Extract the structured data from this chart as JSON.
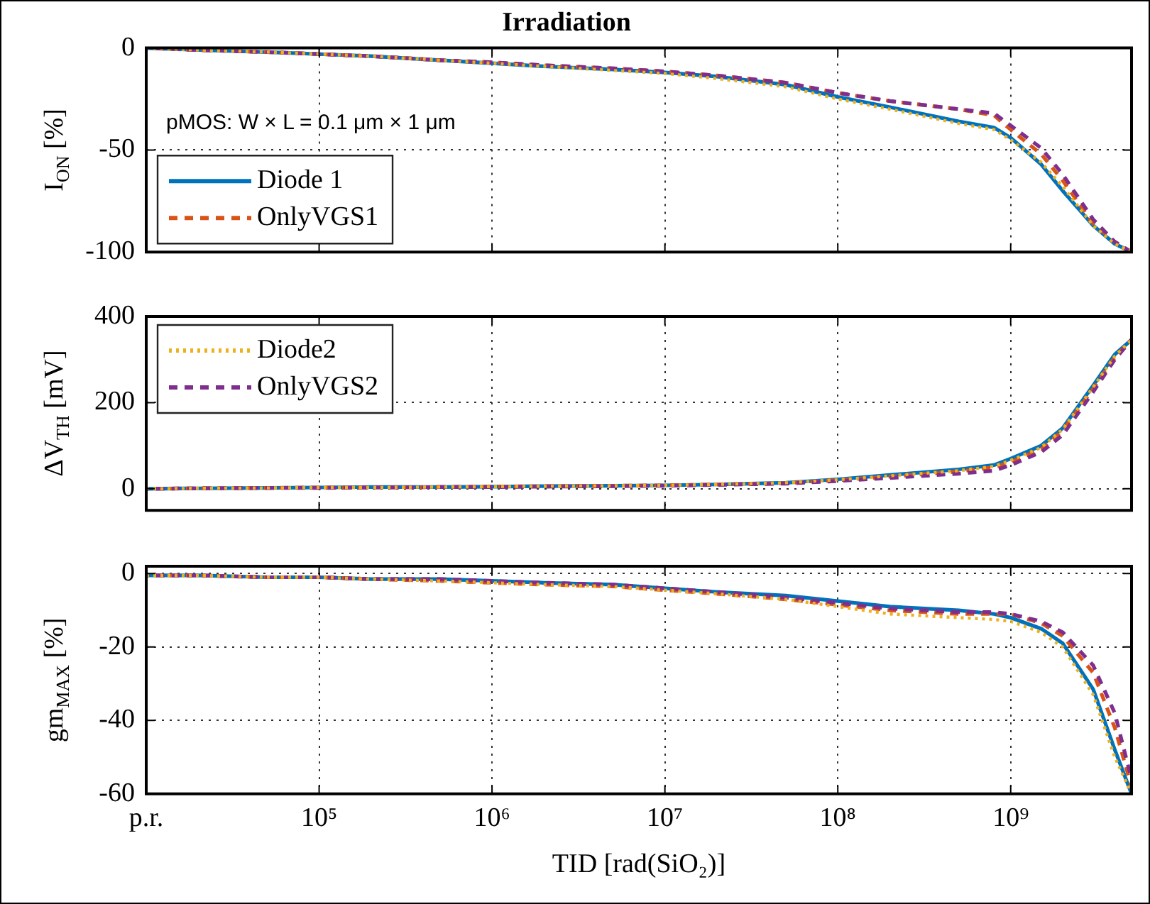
{
  "chart_data": [
    {
      "type": "line",
      "title": "Irradiation",
      "ylabel": "I$_{ON}$ [%]",
      "annotations": [
        "pMOS: W × L = 0.1 μm × 1 μm"
      ],
      "log": "x",
      "grid": true,
      "legend": "bottom left",
      "tick_labels": "y",
      "xlim": [
        10000,
        5000000000
      ],
      "xticks": [
        {
          "value": 100000,
          "label": null
        },
        {
          "value": 1000000,
          "label": null
        },
        {
          "value": 10000000,
          "label": null
        },
        {
          "value": 100000000,
          "label": null
        },
        {
          "value": 1000000000,
          "label": null
        }
      ],
      "ylim": [
        -100,
        0
      ],
      "yticks": [
        -100,
        -50,
        0
      ],
      "x": [
        10000,
        20000,
        50000,
        100000,
        200000,
        500000,
        1000000,
        2000000,
        5000000,
        10000000,
        20000000,
        50000000,
        100000000,
        200000000,
        500000000,
        800000000,
        1000000000,
        1500000000,
        2000000000,
        3000000000,
        4000000000,
        5000000000
      ],
      "series": [
        {
          "name": "Diode 1",
          "color": "#0072bd",
          "line_style": "solid",
          "values": [
            0,
            -1,
            -2,
            -3,
            -4,
            -6,
            -7.5,
            -9,
            -10.5,
            -12,
            -14,
            -18,
            -24,
            -29,
            -36,
            -39,
            -44,
            -57,
            -70,
            -87,
            -96,
            -100
          ]
        },
        {
          "name": "OnlyVGS1",
          "color": "#d95319",
          "line_style": "dashed",
          "values": [
            0,
            -1,
            -2,
            -3,
            -4,
            -6,
            -7,
            -8.5,
            -10,
            -11.5,
            -13.5,
            -17,
            -22,
            -26,
            -30,
            -33,
            -40,
            -52,
            -65,
            -86,
            -95,
            -100
          ]
        },
        {
          "color": "#edb120",
          "line_style": "dotted",
          "values": [
            0,
            -1,
            -2,
            -3,
            -4,
            -6,
            -7.5,
            -9,
            -11,
            -12.5,
            -15,
            -19,
            -25,
            -30,
            -37,
            -40,
            -45,
            -56,
            -68,
            -87,
            -96,
            -100
          ]
        },
        {
          "color": "#7e2f8e",
          "line_style": "dashed",
          "values": [
            0,
            -1,
            -2,
            -3,
            -4,
            -6,
            -7,
            -8.5,
            -10,
            -11.5,
            -13.5,
            -17,
            -22,
            -26,
            -30,
            -32,
            -38,
            -49,
            -62,
            -84,
            -95,
            -100
          ]
        }
      ]
    },
    {
      "type": "line",
      "ylabel": "ΔV$_{TH}$ [mV]",
      "log": "x",
      "grid": true,
      "legend": "top left",
      "tick_labels": "y",
      "xlim": [
        10000,
        5000000000
      ],
      "xticks": [
        {
          "value": 100000,
          "label": null
        },
        {
          "value": 1000000,
          "label": null
        },
        {
          "value": 10000000,
          "label": null
        },
        {
          "value": 100000000,
          "label": null
        },
        {
          "value": 1000000000,
          "label": null
        }
      ],
      "ylim": [
        -50,
        400
      ],
      "yticks": [
        0,
        200,
        400
      ],
      "x": [
        10000,
        20000,
        50000,
        100000,
        200000,
        500000,
        1000000,
        2000000,
        5000000,
        10000000,
        20000000,
        50000000,
        100000000,
        200000000,
        500000000,
        800000000,
        1000000000,
        1500000000,
        2000000000,
        3000000000,
        4000000000,
        5000000000
      ],
      "series": [
        {
          "color": "#0072bd",
          "line_style": "solid",
          "values": [
            0,
            1,
            2,
            3,
            4,
            4,
            5,
            6,
            7,
            8,
            10,
            14,
            22,
            32,
            45,
            55,
            70,
            100,
            141,
            240,
            312,
            346
          ]
        },
        {
          "color": "#d95319",
          "line_style": "dashed",
          "values": [
            0,
            1,
            2,
            3,
            3,
            4,
            5,
            6,
            7,
            8,
            10,
            13,
            20,
            28,
            40,
            50,
            62,
            92,
            135,
            232,
            305,
            346
          ]
        },
        {
          "name": "Diode2",
          "color": "#edb120",
          "line_style": "dotted",
          "values": [
            0,
            1,
            2,
            3,
            3,
            4,
            5,
            6,
            7,
            8,
            10,
            14,
            21,
            30,
            42,
            52,
            66,
            96,
            138,
            236,
            308,
            346
          ]
        },
        {
          "name": "OnlyVGS2",
          "color": "#7e2f8e",
          "line_style": "dashed",
          "values": [
            0,
            1,
            2,
            2,
            3,
            4,
            4,
            5,
            6,
            7,
            9,
            12,
            18,
            25,
            35,
            42,
            55,
            85,
            125,
            225,
            300,
            346
          ]
        }
      ]
    },
    {
      "type": "line",
      "ylabel": "gm$_{MAX}$ [%]",
      "xlabel": "TID [rad(SiO₂)]",
      "log": "x",
      "grid": true,
      "xlim": [
        10000,
        5000000000
      ],
      "xticks": [
        {
          "value": 10000,
          "label": "p.r."
        },
        {
          "value": 100000,
          "label": "10⁵"
        },
        {
          "value": 1000000,
          "label": "10⁶"
        },
        {
          "value": 10000000,
          "label": "10⁷"
        },
        {
          "value": 100000000,
          "label": "10⁸"
        },
        {
          "value": 1000000000,
          "label": "10⁹"
        }
      ],
      "ylim": [
        -60,
        2
      ],
      "yticks": [
        -60,
        -40,
        -20,
        0
      ],
      "x": [
        10000,
        20000,
        50000,
        100000,
        200000,
        500000,
        1000000,
        2000000,
        5000000,
        10000000,
        20000000,
        50000000,
        100000000,
        200000000,
        500000000,
        800000000,
        1000000000,
        1500000000,
        2000000000,
        3000000000,
        4000000000,
        5000000000
      ],
      "series": [
        {
          "color": "#0072bd",
          "line_style": "solid",
          "values": [
            -0.5,
            -0.5,
            -1,
            -1,
            -1.5,
            -1.5,
            -2,
            -2.5,
            -3,
            -4,
            -5,
            -6,
            -7.5,
            -9,
            -10,
            -11,
            -12,
            -15,
            -19,
            -31.5,
            -48,
            -60
          ]
        },
        {
          "color": "#d95319",
          "line_style": "dashed",
          "values": [
            -0.5,
            -0.5,
            -1,
            -1,
            -1.5,
            -2,
            -2.5,
            -3,
            -3.5,
            -4.5,
            -5.5,
            -7,
            -8.5,
            -10,
            -11,
            -11,
            -11,
            -13.5,
            -17,
            -27,
            -42,
            -58
          ]
        },
        {
          "color": "#edb120",
          "line_style": "dotted",
          "values": [
            -0.5,
            -0.5,
            -1,
            -1,
            -1.5,
            -2,
            -2.5,
            -3,
            -3.5,
            -4.5,
            -5.5,
            -7,
            -9,
            -11,
            -12,
            -12.5,
            -13,
            -16,
            -20,
            -33,
            -50,
            -60
          ]
        },
        {
          "color": "#7e2f8e",
          "line_style": "dashed",
          "values": [
            -0.5,
            -0.5,
            -1,
            -1,
            -1.5,
            -1.5,
            -2,
            -2.5,
            -3,
            -4,
            -5,
            -6.5,
            -8,
            -9.5,
            -10.5,
            -10.5,
            -11,
            -13,
            -16,
            -25,
            -38,
            -56
          ]
        }
      ]
    }
  ]
}
